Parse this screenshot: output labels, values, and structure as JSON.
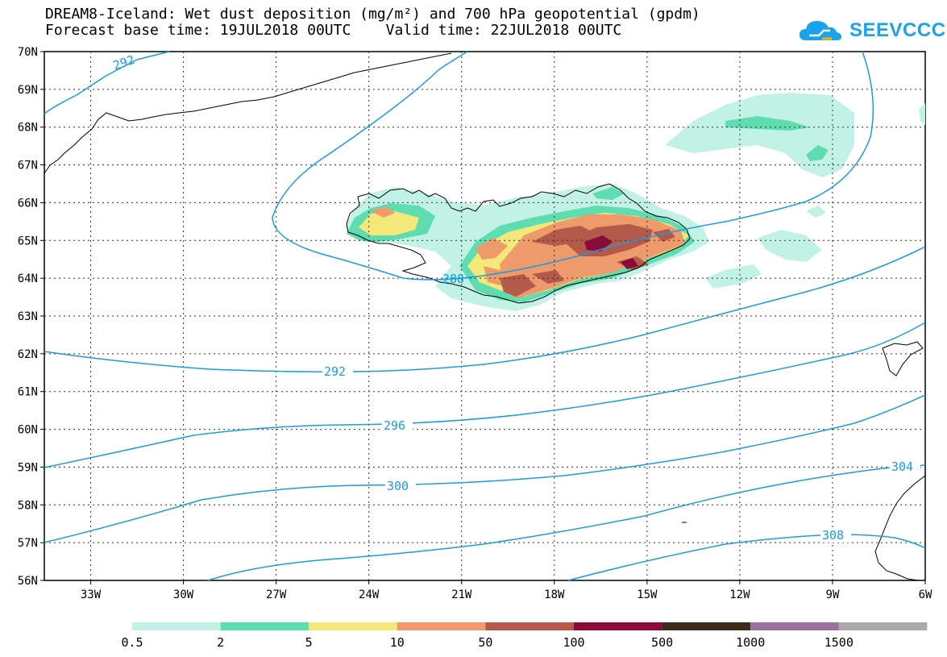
{
  "title": {
    "line1": "DREAM8-Iceland: Wet dust deposition (mg/m²) and 700 hPa geopotential (gpdm)",
    "line2": "Forecast base time: 19JUL2018 00UTC    Valid time: 22JUL2018 00UTC"
  },
  "logo": {
    "text": "SEEVCCC",
    "icon": "cloud-icon",
    "color": "#1aa3e8"
  },
  "axes": {
    "lat_labels": [
      "70N",
      "69N",
      "68N",
      "67N",
      "66N",
      "65N",
      "64N",
      "63N",
      "62N",
      "61N",
      "60N",
      "59N",
      "58N",
      "57N",
      "56N"
    ],
    "lon_labels": [
      "33W",
      "30W",
      "27W",
      "24W",
      "21W",
      "18W",
      "15W",
      "12W",
      "9W",
      "6W"
    ],
    "lat_range": [
      56,
      70
    ],
    "lon_range": [
      -34.5,
      -6
    ],
    "grid": "dotted"
  },
  "contours": {
    "field": "700 hPa geopotential (gpdm)",
    "color": "#1a9ce0",
    "levels": [
      288,
      292,
      296,
      300,
      304,
      308
    ]
  },
  "contour_labels": [
    "292",
    "288",
    "292",
    "296",
    "300",
    "304",
    "308"
  ],
  "legend": {
    "colors": [
      "#c2f2e6",
      "#5fdcb0",
      "#f5e87a",
      "#ef9a6a",
      "#b45a4a",
      "#8a0a3a",
      "#3a2a1a",
      "#9a70a0",
      "#aaaaaa"
    ],
    "labels": [
      "0.5",
      "2",
      "5",
      "10",
      "50",
      "100",
      "500",
      "1000",
      "1500"
    ]
  }
}
